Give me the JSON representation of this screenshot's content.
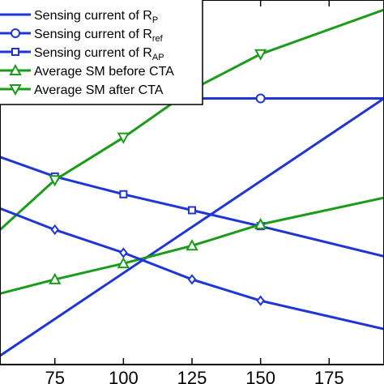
{
  "chart_data": {
    "type": "line",
    "x_ticks": [
      75,
      100,
      125,
      150,
      175
    ],
    "xlim": [
      55,
      195
    ],
    "ylim": [
      0,
      100
    ],
    "grid": false,
    "legend_placement": "top-left",
    "series": [
      {
        "name_main": "Sensing current of R",
        "name_sub": "P",
        "color": "#1f35d6",
        "marker": "none",
        "x": [
          55,
          195
        ],
        "y": [
          2.5,
          75.0
        ]
      },
      {
        "name_main": "Sensing current of R",
        "name_sub": "ref",
        "color": "#1f35d6",
        "marker": "circle",
        "x": [
          55,
          75,
          100,
          125,
          150,
          195
        ],
        "y": [
          75.0,
          75.0,
          75.0,
          75.0,
          75.0,
          75.0
        ]
      },
      {
        "name_main": "Sensing current of R",
        "name_sub": "AP",
        "color": "#1f35d6",
        "marker": "square",
        "x": [
          55,
          75,
          100,
          125,
          150,
          195
        ],
        "y": [
          58.5,
          53.0,
          48.0,
          43.5,
          39.0,
          30.5
        ]
      },
      {
        "name_main": "Average SM before CTA",
        "name_sub": "",
        "color": "#1a9c1a",
        "marker": "triangle-up",
        "x": [
          55,
          75,
          100,
          125,
          150,
          195
        ],
        "y": [
          20.0,
          24.0,
          28.5,
          33.5,
          39.5,
          47.0
        ]
      },
      {
        "name_main": "Average SM after CTA",
        "name_sub": "",
        "color": "#1a9c1a",
        "marker": "triangle-down",
        "x": [
          55,
          75,
          100,
          125,
          150,
          195
        ],
        "y": [
          38.0,
          52.0,
          64.0,
          77.5,
          87.5,
          100.0
        ]
      },
      {
        "name_main": "",
        "name_sub": "",
        "color": "#1f35d6",
        "marker": "diamond",
        "x": [
          55,
          75,
          100,
          125,
          150,
          195
        ],
        "y": [
          44.0,
          38.0,
          31.5,
          24.0,
          18.0,
          10.0
        ]
      }
    ]
  }
}
